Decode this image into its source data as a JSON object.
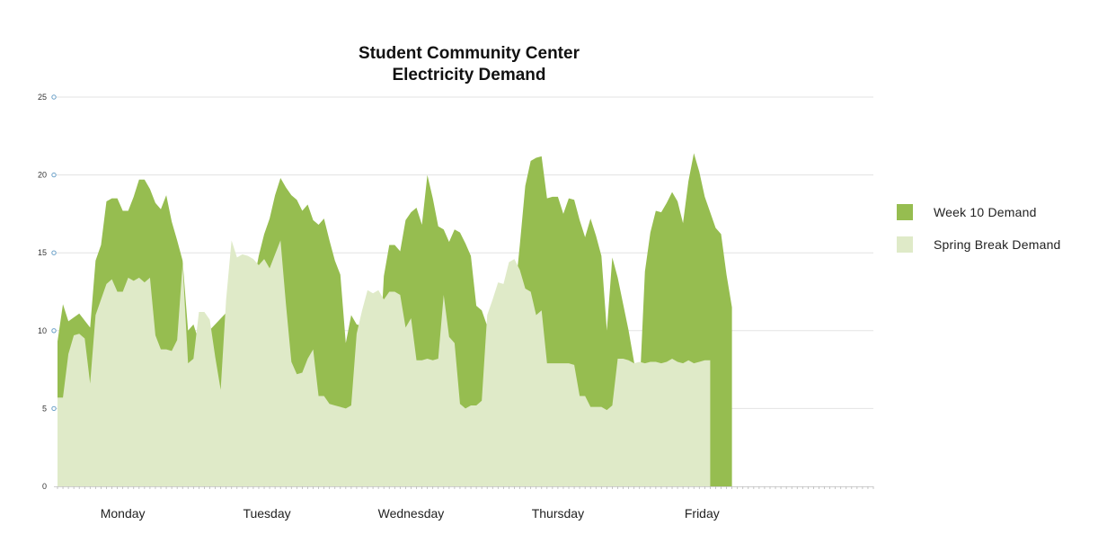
{
  "chart_data": {
    "type": "area",
    "title_lines": [
      "Student Community Center",
      "Electricity Demand"
    ],
    "xlabel": "",
    "ylabel": "",
    "ylim": [
      0,
      25
    ],
    "yticks": [
      0,
      5,
      10,
      15,
      20,
      25
    ],
    "grid": true,
    "legend_position": "right",
    "categories": [
      "Monday",
      "Tuesday",
      "Wednesday",
      "Thursday",
      "Friday"
    ],
    "x_ticks_count": 151,
    "series": [
      {
        "name": "Week 10 Demand",
        "color": "#96bd50",
        "points": [
          [
            0,
            9.3
          ],
          [
            1,
            11.7
          ],
          [
            2,
            10.6
          ],
          [
            4,
            11.1
          ],
          [
            6,
            10.2
          ],
          [
            7,
            14.5
          ],
          [
            8,
            15.5
          ],
          [
            9,
            18.3
          ],
          [
            10,
            18.5
          ],
          [
            11,
            18.5
          ],
          [
            12,
            17.7
          ],
          [
            13,
            17.7
          ],
          [
            14,
            18.6
          ],
          [
            15,
            19.7
          ],
          [
            16,
            19.7
          ],
          [
            17,
            19.1
          ],
          [
            18,
            18.2
          ],
          [
            19,
            17.8
          ],
          [
            20,
            18.7
          ],
          [
            21,
            17
          ],
          [
            22,
            15.8
          ],
          [
            23,
            14.5
          ],
          [
            24,
            10
          ],
          [
            25,
            10.4
          ],
          [
            26,
            9.3
          ],
          [
            36,
            13
          ],
          [
            37,
            14.8
          ],
          [
            38,
            16.2
          ],
          [
            39,
            17.2
          ],
          [
            40,
            18.7
          ],
          [
            41,
            19.8
          ],
          [
            42,
            19.2
          ],
          [
            43,
            18.7
          ],
          [
            44,
            18.4
          ],
          [
            45,
            17.7
          ],
          [
            46,
            18.1
          ],
          [
            47,
            17.1
          ],
          [
            48,
            16.8
          ],
          [
            49,
            17.2
          ],
          [
            50,
            15.8
          ],
          [
            51,
            14.5
          ],
          [
            52,
            13.6
          ],
          [
            53,
            9.2
          ],
          [
            54,
            11
          ],
          [
            55,
            10.4
          ],
          [
            56,
            10.3
          ],
          [
            57,
            11.3
          ],
          [
            58,
            9.8
          ],
          [
            59,
            7
          ],
          [
            60,
            13.5
          ],
          [
            61,
            15.5
          ],
          [
            62,
            15.5
          ],
          [
            63,
            15.1
          ],
          [
            64,
            17.1
          ],
          [
            65,
            17.6
          ],
          [
            66,
            17.9
          ],
          [
            67,
            16.8
          ],
          [
            68,
            20
          ],
          [
            69,
            18.5
          ],
          [
            70,
            16.7
          ],
          [
            71,
            16.5
          ],
          [
            72,
            15.7
          ],
          [
            73,
            16.5
          ],
          [
            74,
            16.3
          ],
          [
            75,
            15.6
          ],
          [
            76,
            14.8
          ],
          [
            77,
            11.6
          ],
          [
            78,
            11.3
          ],
          [
            79,
            10.3
          ],
          [
            80,
            10.1
          ],
          [
            81,
            10.1
          ],
          [
            82,
            7.8
          ],
          [
            83,
            5.8
          ],
          [
            84,
            12
          ],
          [
            85,
            15.5
          ],
          [
            86,
            19.3
          ],
          [
            87,
            20.9
          ],
          [
            88,
            21.1
          ],
          [
            89,
            21.2
          ],
          [
            90,
            18.5
          ],
          [
            91,
            18.6
          ],
          [
            92,
            18.6
          ],
          [
            93,
            17.5
          ],
          [
            94,
            18.5
          ],
          [
            95,
            18.4
          ],
          [
            96,
            17.1
          ],
          [
            97,
            16
          ],
          [
            98,
            17.2
          ],
          [
            99,
            16.1
          ],
          [
            100,
            14.8
          ],
          [
            101,
            10
          ],
          [
            102,
            14.7
          ],
          [
            103,
            13.4
          ],
          [
            104,
            11.7
          ],
          [
            105,
            10
          ],
          [
            106,
            8
          ],
          [
            107,
            6.1
          ],
          [
            108,
            13.8
          ],
          [
            109,
            16.3
          ],
          [
            110,
            17.7
          ],
          [
            111,
            17.6
          ],
          [
            112,
            18.2
          ],
          [
            113,
            18.9
          ],
          [
            114,
            18.3
          ],
          [
            115,
            16.9
          ],
          [
            116,
            19.6
          ],
          [
            117,
            21.4
          ],
          [
            118,
            20.2
          ],
          [
            119,
            18.6
          ],
          [
            120,
            17.6
          ],
          [
            121,
            16.6
          ],
          [
            122,
            16.2
          ],
          [
            123,
            13.6
          ],
          [
            124,
            11.5
          ]
        ]
      },
      {
        "name": "Spring Break Demand",
        "color": "#dfeac8",
        "points": [
          [
            0,
            5.7
          ],
          [
            1,
            5.7
          ],
          [
            2,
            8.5
          ],
          [
            3,
            9.7
          ],
          [
            4,
            9.8
          ],
          [
            5,
            9.5
          ],
          [
            6,
            6.6
          ],
          [
            7,
            11
          ],
          [
            8,
            12
          ],
          [
            9,
            13
          ],
          [
            10,
            13.3
          ],
          [
            11,
            12.5
          ],
          [
            12,
            12.5
          ],
          [
            13,
            13.4
          ],
          [
            14,
            13.2
          ],
          [
            15,
            13.4
          ],
          [
            16,
            13.1
          ],
          [
            17,
            13.4
          ],
          [
            18,
            9.7
          ],
          [
            19,
            8.8
          ],
          [
            20,
            8.8
          ],
          [
            21,
            8.7
          ],
          [
            22,
            9.4
          ],
          [
            23,
            14.3
          ],
          [
            24,
            7.9
          ],
          [
            25,
            8.2
          ],
          [
            26,
            11.2
          ],
          [
            27,
            11.2
          ],
          [
            28,
            10.7
          ],
          [
            29,
            8.3
          ],
          [
            30,
            6.2
          ],
          [
            31,
            12
          ],
          [
            32,
            15.8
          ],
          [
            33,
            14.7
          ],
          [
            34,
            14.9
          ],
          [
            35,
            14.8
          ],
          [
            36,
            14.6
          ],
          [
            37,
            14.2
          ],
          [
            38,
            14.6
          ],
          [
            39,
            14
          ],
          [
            40,
            14.9
          ],
          [
            41,
            15.8
          ],
          [
            42,
            11.7
          ],
          [
            43,
            8
          ],
          [
            44,
            7.2
          ],
          [
            45,
            7.3
          ],
          [
            46,
            8.2
          ],
          [
            47,
            8.8
          ],
          [
            48,
            5.8
          ],
          [
            49,
            5.8
          ],
          [
            50,
            5.3
          ],
          [
            51,
            5.2
          ],
          [
            52,
            5.1
          ],
          [
            53,
            5
          ],
          [
            54,
            5.2
          ],
          [
            55,
            9.8
          ],
          [
            56,
            11.3
          ],
          [
            57,
            12.6
          ],
          [
            58,
            12.4
          ],
          [
            59,
            12.6
          ],
          [
            60,
            12
          ],
          [
            61,
            12.5
          ],
          [
            62,
            12.5
          ],
          [
            63,
            12.3
          ],
          [
            64,
            10.2
          ],
          [
            65,
            10.8
          ],
          [
            66,
            8.1
          ],
          [
            67,
            8.1
          ],
          [
            68,
            8.2
          ],
          [
            69,
            8.1
          ],
          [
            70,
            8.2
          ],
          [
            71,
            12.3
          ],
          [
            72,
            9.6
          ],
          [
            73,
            9.2
          ],
          [
            74,
            5.3
          ],
          [
            75,
            5
          ],
          [
            76,
            5.2
          ],
          [
            77,
            5.2
          ],
          [
            78,
            5.5
          ],
          [
            79,
            11
          ],
          [
            80,
            12
          ],
          [
            81,
            13.1
          ],
          [
            82,
            13
          ],
          [
            83,
            14.4
          ],
          [
            84,
            14.6
          ],
          [
            85,
            13.9
          ],
          [
            86,
            12.7
          ],
          [
            87,
            12.5
          ],
          [
            88,
            11
          ],
          [
            89,
            11.3
          ],
          [
            90,
            7.9
          ],
          [
            91,
            7.9
          ],
          [
            92,
            7.9
          ],
          [
            93,
            7.9
          ],
          [
            94,
            7.9
          ],
          [
            95,
            7.8
          ],
          [
            96,
            5.8
          ],
          [
            97,
            5.8
          ],
          [
            98,
            5.1
          ],
          [
            99,
            5.1
          ],
          [
            100,
            5.1
          ],
          [
            101,
            4.9
          ],
          [
            102,
            5.2
          ],
          [
            103,
            8.2
          ],
          [
            104,
            8.2
          ],
          [
            105,
            8.1
          ],
          [
            106,
            7.9
          ],
          [
            107,
            8
          ],
          [
            108,
            7.9
          ],
          [
            109,
            8
          ],
          [
            110,
            8
          ],
          [
            111,
            7.9
          ],
          [
            112,
            8
          ],
          [
            113,
            8.2
          ],
          [
            114,
            8
          ],
          [
            115,
            7.9
          ],
          [
            116,
            8.1
          ],
          [
            117,
            7.9
          ],
          [
            118,
            8
          ],
          [
            119,
            8.1
          ],
          [
            120,
            8.1
          ]
        ]
      }
    ]
  }
}
